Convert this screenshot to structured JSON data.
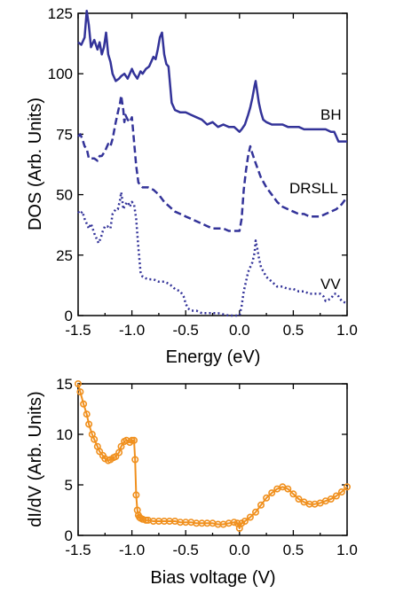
{
  "chart_data": [
    {
      "type": "line",
      "xlabel": "Energy (eV)",
      "ylabel": "DOS (Arb. Units)",
      "xlim": [
        -1.5,
        1.0
      ],
      "ylim": [
        0,
        125
      ],
      "xticks": [
        "-1.5",
        "-1.0",
        "-0.5",
        "0.0",
        "0.5",
        "1.0"
      ],
      "yticks": [
        "0",
        "25",
        "50",
        "75",
        "100",
        "125"
      ],
      "grid": false,
      "legend": "inline labels at right",
      "series": [
        {
          "name": "BH",
          "color": "#333399",
          "style": "solid",
          "x": [
            -1.5,
            -1.47,
            -1.44,
            -1.42,
            -1.4,
            -1.38,
            -1.35,
            -1.32,
            -1.3,
            -1.28,
            -1.26,
            -1.24,
            -1.22,
            -1.2,
            -1.18,
            -1.15,
            -1.12,
            -1.1,
            -1.07,
            -1.04,
            -1.0,
            -0.98,
            -0.95,
            -0.92,
            -0.9,
            -0.87,
            -0.84,
            -0.8,
            -0.78,
            -0.76,
            -0.74,
            -0.72,
            -0.7,
            -0.68,
            -0.66,
            -0.65,
            -0.63,
            -0.6,
            -0.55,
            -0.5,
            -0.45,
            -0.4,
            -0.35,
            -0.3,
            -0.25,
            -0.2,
            -0.15,
            -0.1,
            -0.05,
            0.0,
            0.02,
            0.05,
            0.08,
            0.1,
            0.12,
            0.14,
            0.15,
            0.16,
            0.18,
            0.2,
            0.22,
            0.25,
            0.3,
            0.35,
            0.4,
            0.45,
            0.5,
            0.55,
            0.6,
            0.65,
            0.7,
            0.75,
            0.8,
            0.85,
            0.88,
            0.9,
            0.92,
            0.95,
            1.0
          ],
          "y": [
            113,
            112,
            115,
            126,
            120,
            111,
            114,
            110,
            113,
            108,
            111,
            117,
            108,
            105,
            100,
            97,
            98,
            99,
            100,
            98,
            102,
            100,
            98,
            101,
            100,
            102,
            103,
            107,
            106,
            110,
            115,
            117,
            108,
            104,
            103,
            98,
            88,
            85,
            84,
            84,
            83,
            82,
            81,
            79,
            80,
            78,
            79,
            78,
            78,
            76,
            77,
            79,
            83,
            86,
            90,
            95,
            97,
            94,
            88,
            84,
            81,
            80,
            79,
            79,
            79,
            78,
            78,
            78,
            77,
            77,
            77,
            77,
            77,
            76,
            76,
            74,
            72,
            72,
            72
          ]
        },
        {
          "name": "DRSLL",
          "color": "#333399",
          "style": "dashed",
          "x": [
            -1.5,
            -1.48,
            -1.46,
            -1.44,
            -1.42,
            -1.4,
            -1.38,
            -1.35,
            -1.32,
            -1.3,
            -1.28,
            -1.25,
            -1.22,
            -1.2,
            -1.18,
            -1.15,
            -1.13,
            -1.11,
            -1.1,
            -1.09,
            -1.08,
            -1.07,
            -1.06,
            -1.04,
            -1.02,
            -1.0,
            -0.98,
            -0.96,
            -0.94,
            -0.9,
            -0.85,
            -0.8,
            -0.75,
            -0.7,
            -0.65,
            -0.6,
            -0.55,
            -0.5,
            -0.45,
            -0.4,
            -0.35,
            -0.3,
            -0.25,
            -0.2,
            -0.15,
            -0.1,
            -0.05,
            -0.02,
            0.0,
            0.02,
            0.04,
            0.06,
            0.08,
            0.1,
            0.12,
            0.15,
            0.2,
            0.25,
            0.3,
            0.35,
            0.4,
            0.45,
            0.5,
            0.55,
            0.6,
            0.65,
            0.7,
            0.75,
            0.8,
            0.85,
            0.9,
            0.95,
            1.0
          ],
          "y": [
            74,
            75,
            73,
            70,
            69,
            65,
            65,
            65,
            64,
            66,
            66,
            68,
            71,
            70,
            73,
            80,
            84,
            88,
            91,
            88,
            85,
            80,
            83,
            81,
            80,
            82,
            72,
            62,
            55,
            53,
            53,
            52,
            50,
            47,
            45,
            43,
            42,
            41,
            40,
            39,
            38,
            37,
            36,
            36,
            36,
            35,
            35,
            35,
            35,
            40,
            52,
            60,
            66,
            70,
            67,
            63,
            57,
            53,
            50,
            47,
            45,
            44,
            43,
            42,
            42,
            41,
            41,
            41,
            42,
            43,
            44,
            46,
            49
          ]
        },
        {
          "name": "VV",
          "color": "#333399",
          "style": "dotted",
          "x": [
            -1.5,
            -1.48,
            -1.46,
            -1.44,
            -1.42,
            -1.4,
            -1.38,
            -1.35,
            -1.33,
            -1.31,
            -1.29,
            -1.27,
            -1.25,
            -1.23,
            -1.2,
            -1.18,
            -1.15,
            -1.13,
            -1.11,
            -1.1,
            -1.09,
            -1.08,
            -1.06,
            -1.04,
            -1.02,
            -1.0,
            -0.98,
            -0.96,
            -0.94,
            -0.92,
            -0.9,
            -0.85,
            -0.8,
            -0.75,
            -0.7,
            -0.65,
            -0.6,
            -0.55,
            -0.52,
            -0.5,
            -0.48,
            -0.45,
            -0.4,
            -0.35,
            -0.3,
            -0.2,
            -0.1,
            -0.02,
            0.0,
            0.02,
            0.04,
            0.06,
            0.08,
            0.1,
            0.12,
            0.14,
            0.15,
            0.16,
            0.18,
            0.2,
            0.25,
            0.3,
            0.35,
            0.4,
            0.45,
            0.5,
            0.55,
            0.6,
            0.65,
            0.7,
            0.75,
            0.78,
            0.8,
            0.85,
            0.88,
            0.9,
            0.92,
            0.95,
            1.0
          ],
          "y": [
            43,
            42,
            43,
            40,
            38,
            36,
            38,
            34,
            32,
            30,
            32,
            35,
            37,
            37,
            36,
            42,
            44,
            44,
            48,
            51,
            48,
            44,
            46,
            47,
            45,
            47,
            46,
            40,
            28,
            18,
            16,
            15,
            15,
            14,
            14,
            13,
            11,
            10,
            8,
            5,
            3,
            2,
            2,
            1,
            1,
            1,
            0,
            0,
            0,
            4,
            10,
            14,
            18,
            20,
            22,
            26,
            31,
            29,
            24,
            20,
            16,
            14,
            12,
            12,
            11,
            11,
            10,
            10,
            9,
            9,
            9,
            8,
            6,
            7,
            9,
            9,
            8,
            6,
            5
          ]
        }
      ]
    },
    {
      "type": "line",
      "xlabel": "Bias voltage (V)",
      "ylabel": "dI/dV (Arb. Units)",
      "xlim": [
        -1.5,
        1.0
      ],
      "ylim": [
        0,
        15
      ],
      "xticks": [
        "-1.5",
        "-1.0",
        "-0.5",
        "0.0",
        "0.5",
        "1.0"
      ],
      "yticks": [
        "0",
        "5",
        "10",
        "15"
      ],
      "grid": false,
      "series": [
        {
          "color": "#f0901e",
          "style": "markers",
          "x": [
            -1.5,
            -1.48,
            -1.45,
            -1.42,
            -1.4,
            -1.37,
            -1.35,
            -1.32,
            -1.3,
            -1.27,
            -1.25,
            -1.22,
            -1.2,
            -1.17,
            -1.15,
            -1.12,
            -1.1,
            -1.07,
            -1.05,
            -1.02,
            -1.0,
            -0.98,
            -0.97,
            -0.96,
            -0.95,
            -0.94,
            -0.93,
            -0.92,
            -0.9,
            -0.87,
            -0.85,
            -0.8,
            -0.75,
            -0.7,
            -0.65,
            -0.6,
            -0.55,
            -0.5,
            -0.45,
            -0.4,
            -0.35,
            -0.3,
            -0.25,
            -0.2,
            -0.15,
            -0.1,
            -0.05,
            -0.02,
            0.0,
            0.02,
            0.05,
            0.1,
            0.15,
            0.2,
            0.25,
            0.3,
            0.35,
            0.4,
            0.45,
            0.5,
            0.55,
            0.6,
            0.65,
            0.7,
            0.75,
            0.8,
            0.85,
            0.9,
            0.95,
            1.0
          ],
          "y": [
            15,
            14.2,
            13,
            12,
            11,
            10,
            9.5,
            8.8,
            8.3,
            7.9,
            7.6,
            7.4,
            7.5,
            7.7,
            7.8,
            8.2,
            8.8,
            9.3,
            9.4,
            9.2,
            9.4,
            9.4,
            7.5,
            4,
            2.5,
            2,
            1.8,
            1.7,
            1.6,
            1.5,
            1.5,
            1.4,
            1.4,
            1.4,
            1.4,
            1.4,
            1.3,
            1.3,
            1.3,
            1.2,
            1.2,
            1.2,
            1.2,
            1.1,
            1.1,
            1.2,
            1.3,
            1.2,
            0.7,
            1.2,
            1.4,
            1.8,
            2.3,
            3.0,
            3.7,
            4.2,
            4.6,
            4.8,
            4.6,
            4.1,
            3.6,
            3.3,
            3.1,
            3.1,
            3.2,
            3.4,
            3.6,
            3.9,
            4.3,
            4.8
          ]
        }
      ]
    }
  ]
}
